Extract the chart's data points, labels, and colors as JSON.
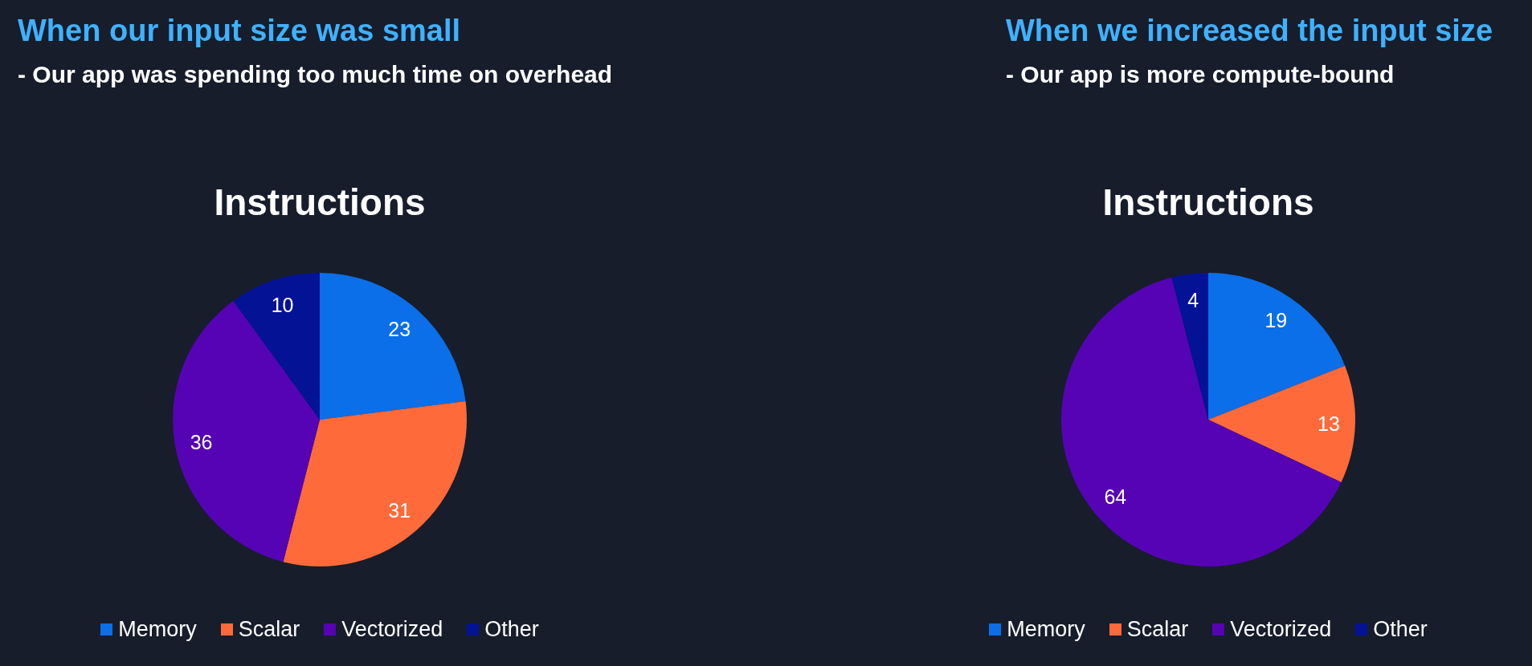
{
  "chart_data": [
    {
      "type": "pie",
      "title": "Instructions",
      "annotations": [
        "When our input size was small",
        "- Our app was spending too much time on overhead"
      ],
      "categories": [
        "Memory",
        "Scalar",
        "Vectorized",
        "Other"
      ],
      "values": [
        23,
        31,
        36,
        10
      ],
      "colors": [
        "#0a6fe8",
        "#ff6a3b",
        "#5603b5",
        "#041296"
      ],
      "data_labels": true,
      "legend": "bottom"
    },
    {
      "type": "pie",
      "title": "Instructions",
      "annotations": [
        "When we increased the input size",
        "- Our app is more compute-bound"
      ],
      "categories": [
        "Memory",
        "Scalar",
        "Vectorized",
        "Other"
      ],
      "values": [
        19,
        13,
        64,
        4
      ],
      "colors": [
        "#0a6fe8",
        "#ff6a3b",
        "#5603b5",
        "#041296"
      ],
      "data_labels": true,
      "legend": "bottom"
    }
  ]
}
